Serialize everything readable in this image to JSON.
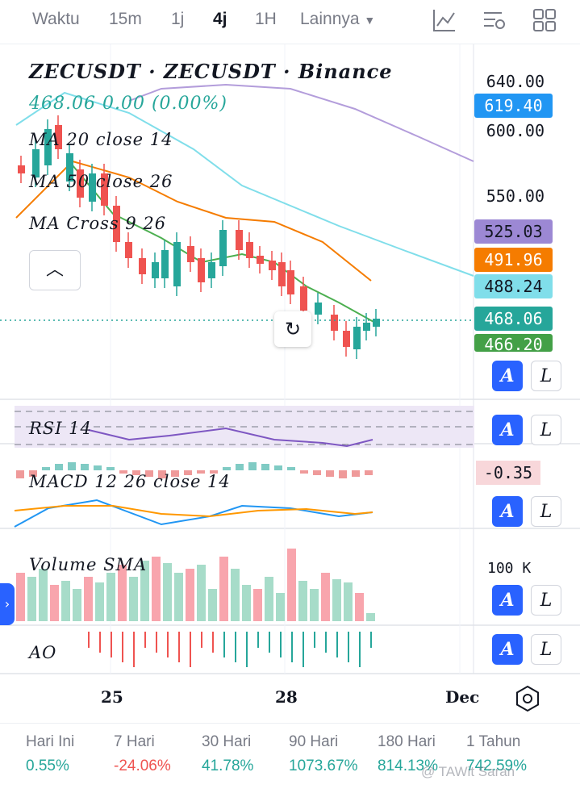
{
  "toolbar": {
    "timeframes": [
      "Waktu",
      "15m",
      "1j",
      "4j",
      "1H"
    ],
    "more_label": "Lainnya",
    "icons": [
      "indicator-icon",
      "chart-settings-icon",
      "layout-grid-icon"
    ]
  },
  "chart": {
    "symbol_title": "ZECUSDT · ZECUSDT · Binance",
    "price_line": "468.06  0.00  (0.00%)",
    "legends": [
      "MA 20 close 14",
      "MA 50 close 26",
      "MA Cross 9 26"
    ],
    "price_axis": [
      "640.00",
      "600.00",
      "550.00"
    ],
    "price_tags": [
      {
        "value": "619.40",
        "bg": "#2196f3",
        "fg": "#ffffff"
      },
      {
        "value": "525.03",
        "bg": "#9c88d4",
        "fg": "#131722"
      },
      {
        "value": "491.96",
        "bg": "#f57c00",
        "fg": "#ffffff"
      },
      {
        "value": "488.24",
        "bg": "#80deea",
        "fg": "#131722"
      },
      {
        "value": "468.06",
        "bg": "#26a69a",
        "fg": "#ffffff"
      },
      {
        "value": "466.20",
        "bg": "#43a047",
        "fg": "#ffffff"
      }
    ],
    "rsi_label": "RSI 14",
    "macd_label": "MACD 12 26 close 14",
    "macd_value": "-0.35",
    "volume_label": "Volume SMA",
    "volume_axis": "100 K",
    "ao_label": "AO",
    "x_axis": [
      "25",
      "28",
      "Dec"
    ],
    "pane_button_a": "A",
    "pane_button_l": "L",
    "colors": {
      "up": "#26a69a",
      "down": "#ef5350",
      "ma20": "#4caf50",
      "ma50": "#f57c00",
      "ma_fast": "#80deea",
      "ma_slow": "#b39ddb"
    }
  },
  "performance": [
    {
      "label": "Hari Ini",
      "value": "0.55%",
      "color": "#26a69a"
    },
    {
      "label": "7 Hari",
      "value": "-24.06%",
      "color": "#ef5350"
    },
    {
      "label": "30 Hari",
      "value": "41.78%",
      "color": "#26a69a"
    },
    {
      "label": "90 Hari",
      "value": "1073.67%",
      "color": "#26a69a"
    },
    {
      "label": "180 Hari",
      "value": "814.13%",
      "color": "#26a69a"
    },
    {
      "label": "1 Tahun",
      "value": "742.59%",
      "color": "#26a69a"
    }
  ],
  "watermark": "@ TAWit Saran"
}
